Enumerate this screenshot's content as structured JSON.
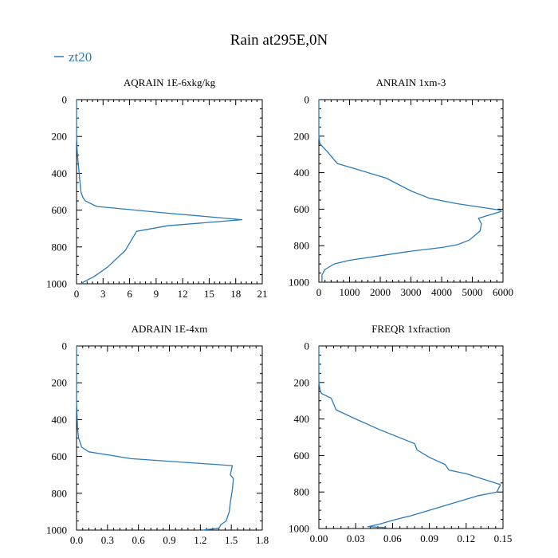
{
  "figure": {
    "title": "Rain at295E,0N",
    "legend": {
      "label": "zt20",
      "color": "#2b7bba"
    }
  },
  "chart_data": [
    {
      "type": "line",
      "title": "AQRAIN  1E-6xkg/kg",
      "series_name": "zt20",
      "xlim": [
        0,
        21
      ],
      "ylim": [
        1000,
        0
      ],
      "xticks": [
        0,
        3,
        6,
        9,
        12,
        15,
        18,
        21
      ],
      "xtick_labels": [
        "0",
        "3",
        "6",
        "9",
        "12",
        "15",
        "18",
        "21"
      ],
      "yticks": [
        0,
        200,
        400,
        600,
        800,
        1000
      ],
      "ytick_labels": [
        "0",
        "200",
        "400",
        "600",
        "800",
        "1000"
      ],
      "x": [
        0.0,
        0.0,
        0.1,
        0.3,
        0.5,
        0.7,
        1.0,
        2.3,
        10.0,
        18.7,
        10.3,
        6.8,
        5.5,
        3.5,
        2.0,
        0.8,
        0.6
      ],
      "y": [
        0,
        200,
        300,
        400,
        500,
        530,
        550,
        580,
        615,
        652,
        685,
        715,
        820,
        910,
        960,
        990,
        1000
      ]
    },
    {
      "type": "line",
      "title": "ANRAIN  1xm-3",
      "series_name": "zt20",
      "xlim": [
        0,
        6000
      ],
      "ylim": [
        1000,
        0
      ],
      "xticks": [
        0,
        1000,
        2000,
        3000,
        4000,
        5000,
        6000
      ],
      "xtick_labels": [
        "0",
        "1000",
        "2000",
        "3000",
        "4000",
        "5000",
        "6000"
      ],
      "yticks": [
        0,
        200,
        400,
        600,
        800,
        1000
      ],
      "ytick_labels": [
        "0",
        "200",
        "400",
        "600",
        "800",
        "1000"
      ],
      "x": [
        0,
        0,
        30,
        300,
        600,
        1400,
        2200,
        3000,
        3600,
        4500,
        5900,
        5950,
        5200,
        5300,
        5250,
        4900,
        4500,
        4000,
        3000,
        2000,
        1000,
        500,
        200,
        100,
        100
      ],
      "y": [
        0,
        200,
        240,
        290,
        350,
        390,
        430,
        500,
        540,
        570,
        605,
        612,
        650,
        680,
        720,
        770,
        795,
        810,
        830,
        855,
        880,
        900,
        930,
        960,
        1000
      ]
    },
    {
      "type": "line",
      "title": "ADRAIN  1E-4xm",
      "series_name": "zt20",
      "xlim": [
        0,
        1.8
      ],
      "ylim": [
        1000,
        0
      ],
      "xticks": [
        0.0,
        0.3,
        0.6,
        0.9,
        1.2,
        1.5,
        1.8
      ],
      "xtick_labels": [
        "0.0",
        "0.3",
        "0.6",
        "0.9",
        "1.2",
        "1.5",
        "1.8"
      ],
      "yticks": [
        0,
        200,
        400,
        600,
        800,
        1000
      ],
      "ytick_labels": [
        "0",
        "200",
        "400",
        "600",
        "800",
        "1000"
      ],
      "x": [
        0.0,
        0.0,
        0.01,
        0.02,
        0.05,
        0.12,
        0.53,
        1.51,
        1.49,
        1.52,
        1.51,
        1.49,
        1.48,
        1.45,
        1.4,
        1.38,
        1.22
      ],
      "y": [
        0,
        300,
        450,
        500,
        550,
        575,
        612,
        650,
        700,
        720,
        780,
        850,
        900,
        950,
        970,
        990,
        1000
      ]
    },
    {
      "type": "line",
      "title": "FREQR  1xfraction",
      "series_name": "zt20",
      "xlim": [
        0,
        0.15
      ],
      "ylim": [
        1000,
        0
      ],
      "xticks": [
        0.0,
        0.03,
        0.06,
        0.09,
        0.12,
        0.15
      ],
      "xtick_labels": [
        "0.00",
        "0.03",
        "0.06",
        "0.09",
        "0.12",
        "0.15"
      ],
      "yticks": [
        0,
        200,
        400,
        600,
        800,
        1000
      ],
      "ytick_labels": [
        "0",
        "200",
        "400",
        "600",
        "800",
        "1000"
      ],
      "x": [
        0.0,
        0.0,
        0.001,
        0.002,
        0.008,
        0.01,
        0.014,
        0.03,
        0.05,
        0.078,
        0.08,
        0.09,
        0.103,
        0.106,
        0.12,
        0.148,
        0.145,
        0.13,
        0.11,
        0.09,
        0.075,
        0.06,
        0.05,
        0.04,
        0.055
      ],
      "y": [
        0,
        200,
        240,
        260,
        280,
        285,
        350,
        400,
        460,
        535,
        570,
        610,
        650,
        680,
        700,
        760,
        800,
        820,
        860,
        900,
        930,
        955,
        975,
        990,
        995
      ]
    }
  ]
}
